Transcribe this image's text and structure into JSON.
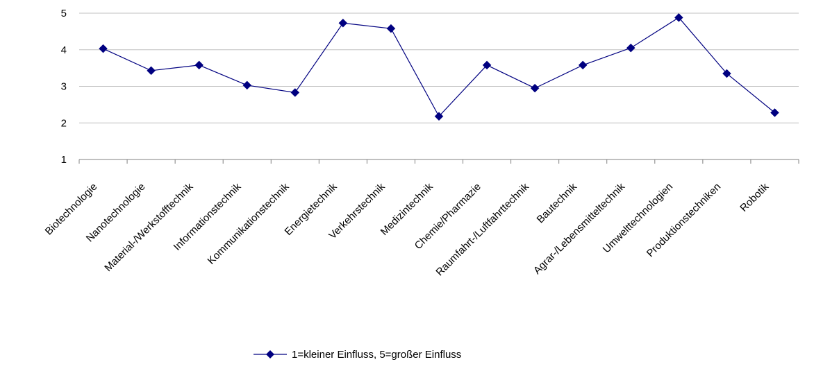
{
  "chart_data": {
    "type": "line",
    "title": "",
    "xlabel": "",
    "ylabel": "",
    "ylim": [
      1,
      5
    ],
    "yticks": [
      "1",
      "2",
      "3",
      "4",
      "5"
    ],
    "grid": true,
    "legend_position": "bottom",
    "categories": [
      "Biotechnologie",
      "Nanotechnologie",
      "Material-/Werkstofftechnik",
      "Informationstechnik",
      "Kommunikationstechnik",
      "Energietechnik",
      "Verkehrstechnik",
      "Medizintechnik",
      "Chemie/Pharmazie",
      "Raumfahrt-/Luftfahrttechnik",
      "Bautechnik",
      "Agrar-/Lebensmitteltechnik",
      "Umwelttechnologien",
      "Produktionstechniken",
      "Robotik"
    ],
    "series": [
      {
        "name": "1=kleiner Einfluss, 5=großer Einfluss",
        "color": "#000080",
        "marker": "diamond",
        "values": [
          4.03,
          3.43,
          3.58,
          3.03,
          2.83,
          4.73,
          4.58,
          2.18,
          3.58,
          2.95,
          3.58,
          4.05,
          4.88,
          3.35,
          2.28
        ]
      }
    ]
  }
}
